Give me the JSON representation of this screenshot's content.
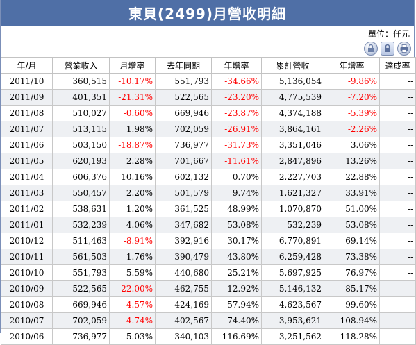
{
  "header": {
    "title": "東貝(2499)月營收明細",
    "unit": "單位：仟元"
  },
  "toolbar": {
    "icons": [
      "lock-icon",
      "lock-icon",
      "print-icon"
    ]
  },
  "table": {
    "columns": [
      "年/月",
      "營業收入",
      "月增率",
      "去年同期",
      "年增率",
      "累計營收",
      "年增率",
      "達成率"
    ],
    "rows": [
      [
        "2011/10",
        "360,515",
        "-10.17%",
        "551,793",
        "-34.66%",
        "5,136,054",
        "-9.86%",
        "--"
      ],
      [
        "2011/09",
        "401,351",
        "-21.31%",
        "522,565",
        "-23.20%",
        "4,775,539",
        "-7.20%",
        "--"
      ],
      [
        "2011/08",
        "510,027",
        "-0.60%",
        "669,946",
        "-23.87%",
        "4,374,188",
        "-5.39%",
        "--"
      ],
      [
        "2011/07",
        "513,115",
        "1.98%",
        "702,059",
        "-26.91%",
        "3,864,161",
        "-2.26%",
        "--"
      ],
      [
        "2011/06",
        "503,150",
        "-18.87%",
        "736,977",
        "-31.73%",
        "3,351,046",
        "3.06%",
        "--"
      ],
      [
        "2011/05",
        "620,193",
        "2.28%",
        "701,667",
        "-11.61%",
        "2,847,896",
        "13.26%",
        "--"
      ],
      [
        "2011/04",
        "606,376",
        "10.16%",
        "602,132",
        "0.70%",
        "2,227,703",
        "22.88%",
        "--"
      ],
      [
        "2011/03",
        "550,457",
        "2.20%",
        "501,579",
        "9.74%",
        "1,621,327",
        "33.91%",
        "--"
      ],
      [
        "2011/02",
        "538,631",
        "1.20%",
        "361,525",
        "48.99%",
        "1,070,870",
        "51.00%",
        "--"
      ],
      [
        "2011/01",
        "532,239",
        "4.06%",
        "347,682",
        "53.08%",
        "532,239",
        "53.08%",
        "--"
      ],
      [
        "2010/12",
        "511,463",
        "-8.91%",
        "392,916",
        "30.17%",
        "6,770,891",
        "69.14%",
        "--"
      ],
      [
        "2010/11",
        "561,503",
        "1.76%",
        "390,479",
        "43.80%",
        "6,259,428",
        "73.38%",
        "--"
      ],
      [
        "2010/10",
        "551,793",
        "5.59%",
        "440,680",
        "25.21%",
        "5,697,925",
        "76.97%",
        "--"
      ],
      [
        "2010/09",
        "522,565",
        "-22.00%",
        "462,755",
        "12.92%",
        "5,146,132",
        "85.17%",
        "--"
      ],
      [
        "2010/08",
        "669,946",
        "-4.57%",
        "424,169",
        "57.94%",
        "4,623,567",
        "99.60%",
        "--"
      ],
      [
        "2010/07",
        "702,059",
        "-4.74%",
        "402,567",
        "74.40%",
        "3,953,621",
        "108.94%",
        "--"
      ],
      [
        "2010/06",
        "736,977",
        "5.03%",
        "340,103",
        "116.69%",
        "3,251,562",
        "118.28%",
        "--"
      ]
    ]
  },
  "colors": {
    "header_bg": "#4f6fa6",
    "negative": "#ff0000",
    "stripe": "#eef0f3"
  }
}
